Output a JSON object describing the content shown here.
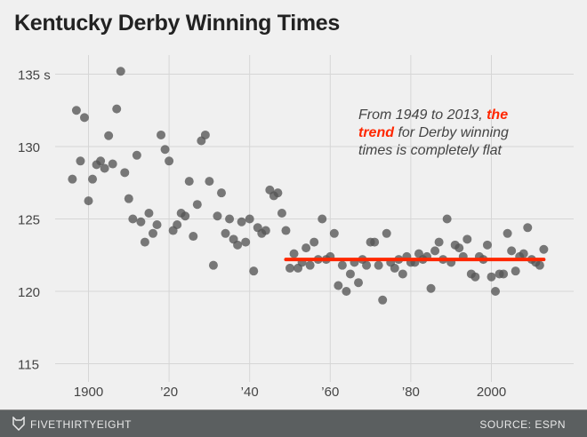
{
  "chart_data": {
    "type": "scatter",
    "title": "Kentucky Derby Winning Times",
    "ylim": [
      113,
      137
    ],
    "xlim": [
      1892,
      2018
    ],
    "grid": true,
    "y_ticks": [
      {
        "value": 135,
        "label": "135 s"
      },
      {
        "value": 130,
        "label": "130"
      },
      {
        "value": 125,
        "label": "125"
      },
      {
        "value": 120,
        "label": "120"
      },
      {
        "value": 115,
        "label": "115"
      }
    ],
    "x_ticks": [
      {
        "value": 1900,
        "label": "1900"
      },
      {
        "value": 1920,
        "label": "’20"
      },
      {
        "value": 1940,
        "label": "’40"
      },
      {
        "value": 1960,
        "label": "’60"
      },
      {
        "value": 1980,
        "label": "’80"
      },
      {
        "value": 2000,
        "label": "2000"
      }
    ],
    "point_color": "#555555",
    "trend_color": "#ff2700",
    "trend": {
      "x": [
        1949,
        2013
      ],
      "y": [
        122.2,
        122.2
      ]
    },
    "annotation": {
      "pre": "From 1949 to 2013, ",
      "highlight": "the trend",
      "post": " for Derby winning times is completely flat"
    },
    "points": {
      "x_start": 1896,
      "y": [
        127.75,
        132.5,
        129,
        132,
        126.25,
        127.75,
        128.75,
        129,
        128.5,
        130.75,
        128.8,
        132.6,
        135.2,
        128.2,
        126.4,
        125,
        129.4,
        124.8,
        123.4,
        125.4,
        124,
        124.6,
        130.8,
        129.8,
        129,
        124.2,
        124.6,
        125.4,
        125.2,
        127.6,
        123.8,
        126,
        130.4,
        130.8,
        127.6,
        121.8,
        125.2,
        126.8,
        124,
        125,
        123.6,
        123.2,
        124.8,
        123.4,
        125,
        121.4,
        124.4,
        124,
        124.2,
        127,
        126.6,
        126.8,
        125.4,
        124.2,
        121.6,
        122.6,
        121.6,
        122,
        123,
        121.8,
        123.4,
        122.2,
        125,
        122.2,
        122.4,
        124,
        120.4,
        121.8,
        120,
        121.2,
        122,
        120.6,
        122.2,
        121.8,
        123.4,
        123.4,
        121.8,
        119.4,
        124,
        122,
        121.6,
        122.2,
        121.2,
        122.4,
        122,
        122,
        122.6,
        122.2,
        122.4,
        120.2,
        122.8,
        123.4,
        122.2,
        125,
        122,
        123.2,
        123,
        122.4,
        123.6,
        121.2,
        121,
        122.4,
        122.2,
        123.2,
        121,
        120,
        121.2,
        121.2,
        124,
        122.8,
        121.4,
        122.4,
        122.6,
        124.4,
        122.2,
        122,
        121.8,
        122.9
      ]
    }
  },
  "footer": {
    "brand": "FIVETHIRTYEIGHT",
    "source": "SOURCE: ESPN"
  }
}
